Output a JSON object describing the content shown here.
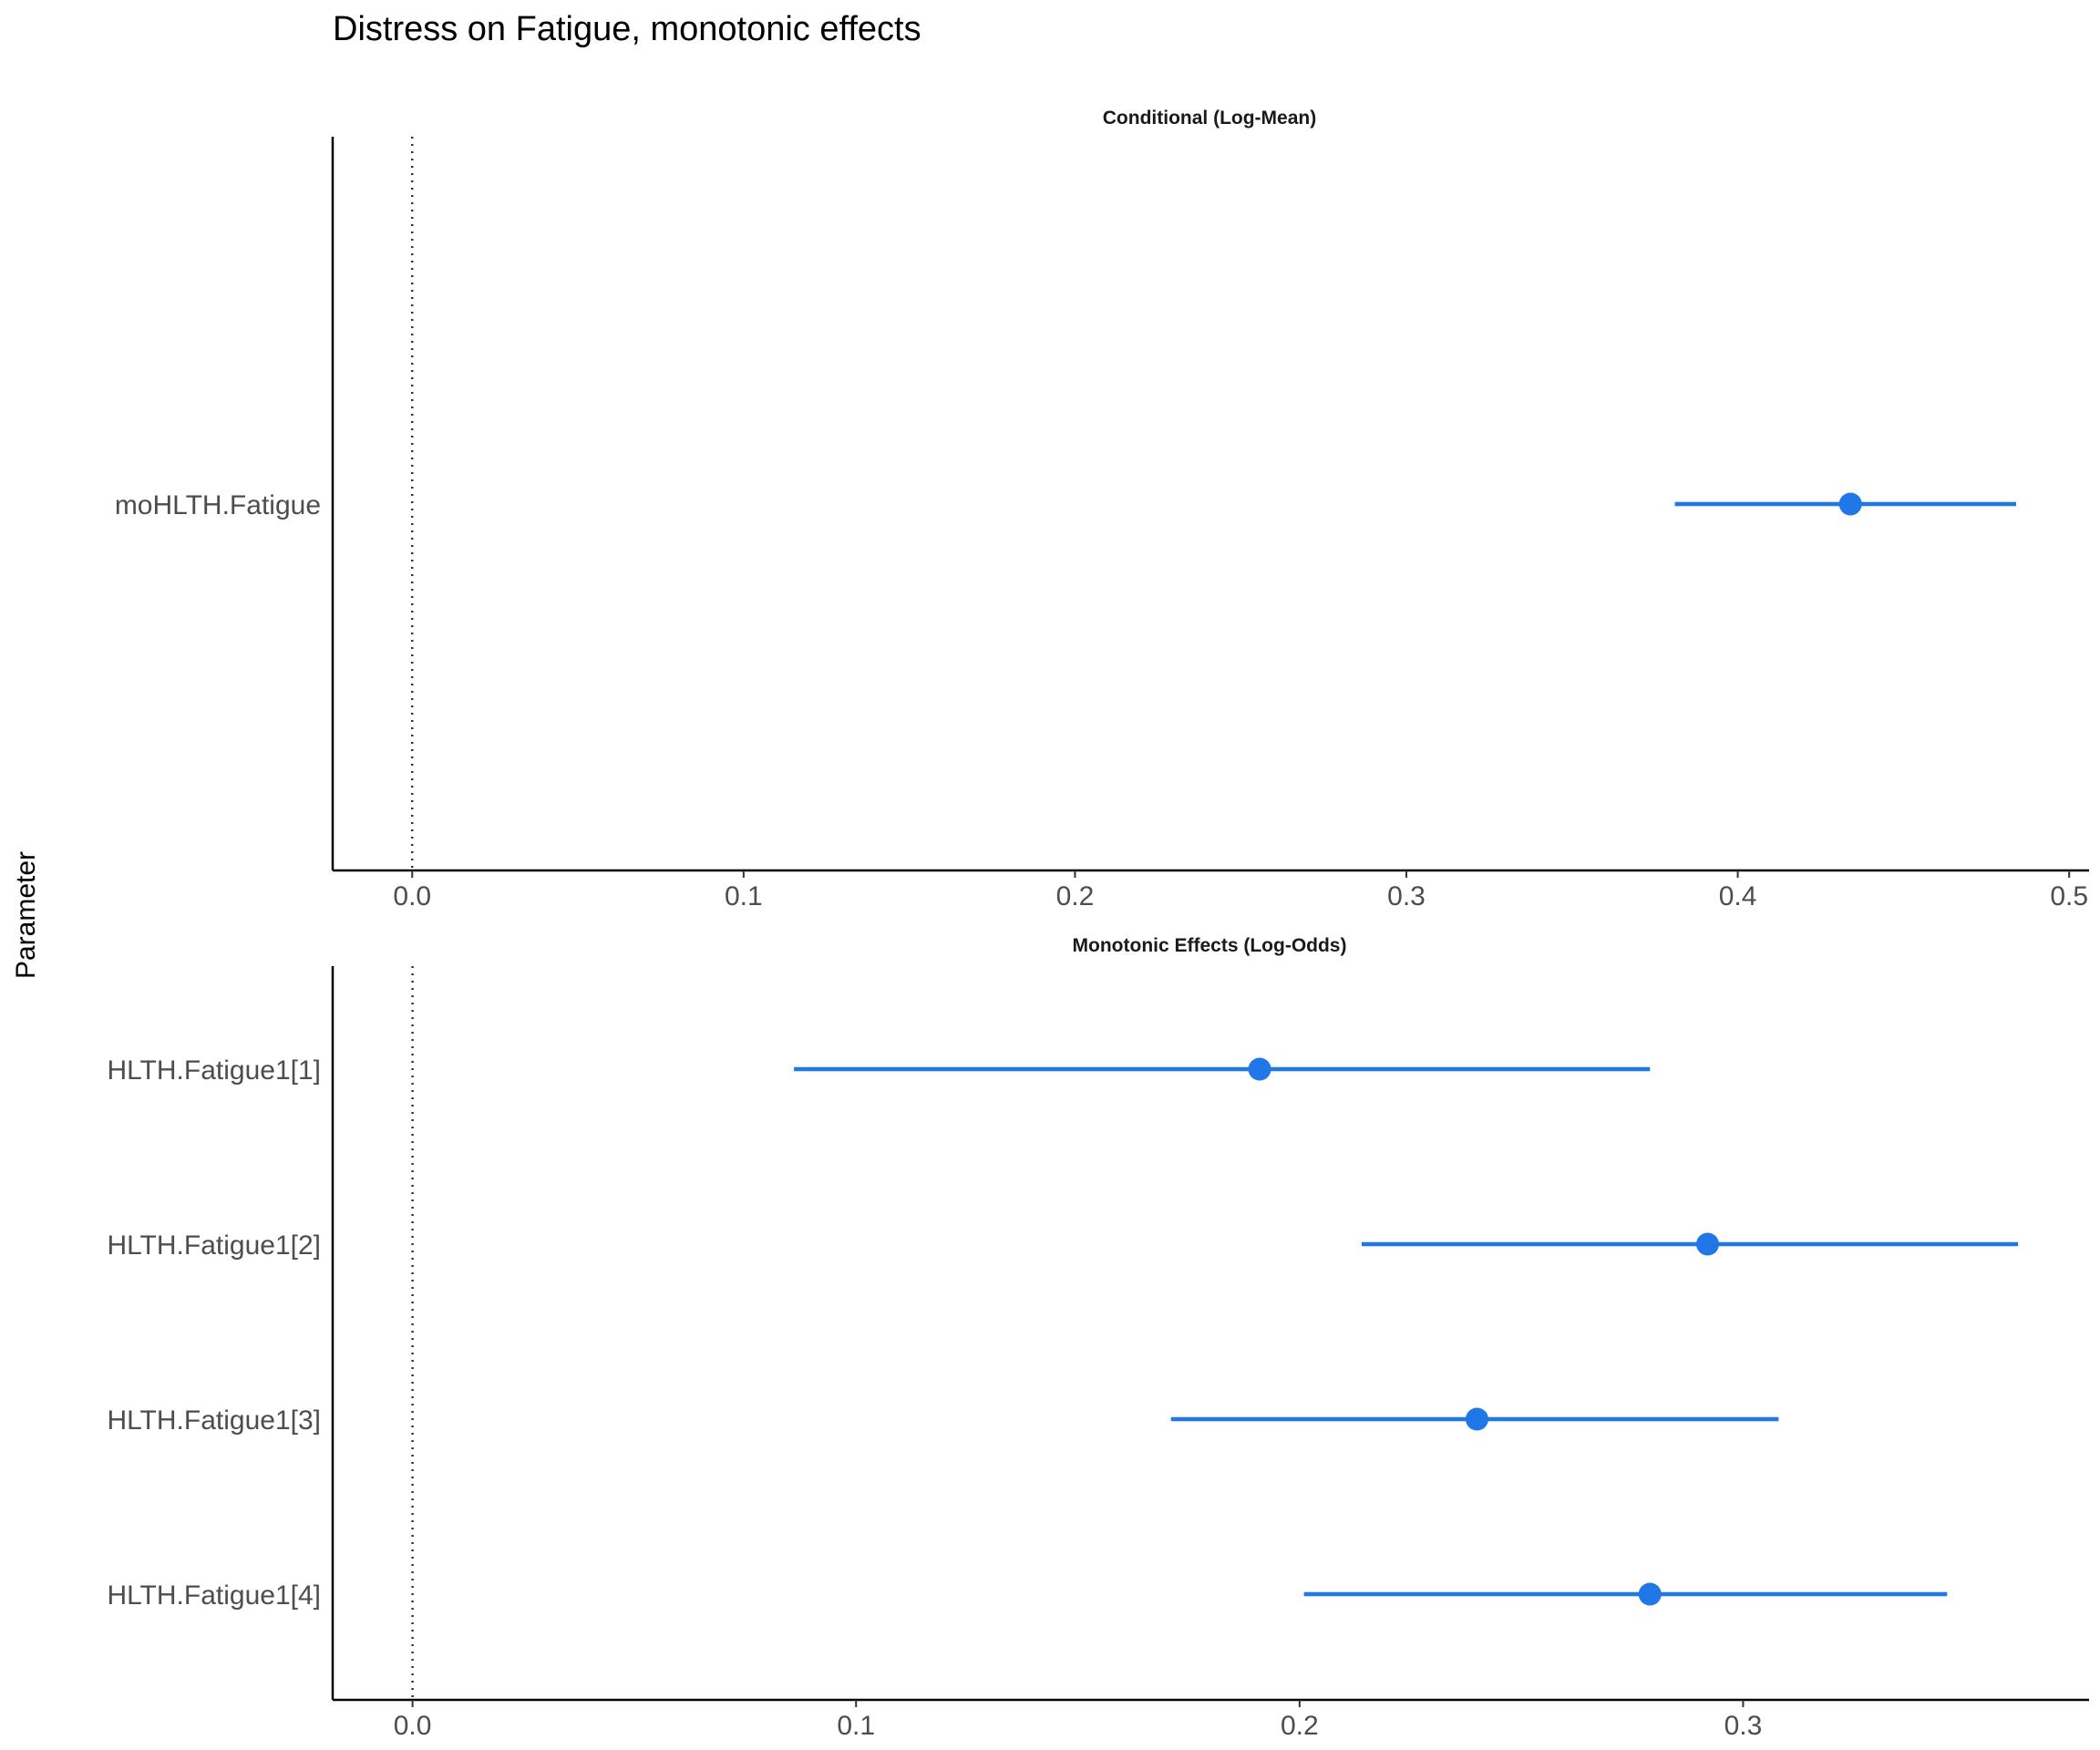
{
  "chart_data": {
    "type": "forest",
    "title": "Distress on Fatigue, monotonic effects",
    "ylabel": "Parameter",
    "color": "#1f77e8",
    "reference_line": 0,
    "panels": [
      {
        "title": "Conditional (Log-Mean)",
        "xlim": [
          -0.024,
          0.506
        ],
        "ticks": [
          0.0,
          0.1,
          0.2,
          0.3,
          0.4,
          0.5
        ],
        "tick_labels": [
          "0.0",
          "0.1",
          "0.2",
          "0.3",
          "0.4",
          "0.5"
        ],
        "rows": [
          {
            "label": "moHLTH.Fatigue",
            "estimate": 0.434,
            "low": 0.381,
            "high": 0.484
          }
        ]
      },
      {
        "title": "Monotonic Effects (Log-Odds)",
        "xlim": [
          -0.018,
          0.378
        ],
        "ticks": [
          0.0,
          0.1,
          0.2,
          0.3
        ],
        "tick_labels": [
          "0.0",
          "0.1",
          "0.2",
          "0.3"
        ],
        "rows": [
          {
            "label": "HLTH.Fatigue1[1]",
            "estimate": 0.191,
            "low": 0.086,
            "high": 0.279
          },
          {
            "label": "HLTH.Fatigue1[2]",
            "estimate": 0.292,
            "low": 0.214,
            "high": 0.362
          },
          {
            "label": "HLTH.Fatigue1[3]",
            "estimate": 0.24,
            "low": 0.171,
            "high": 0.308
          },
          {
            "label": "HLTH.Fatigue1[4]",
            "estimate": 0.279,
            "low": 0.201,
            "high": 0.346
          }
        ]
      }
    ]
  }
}
